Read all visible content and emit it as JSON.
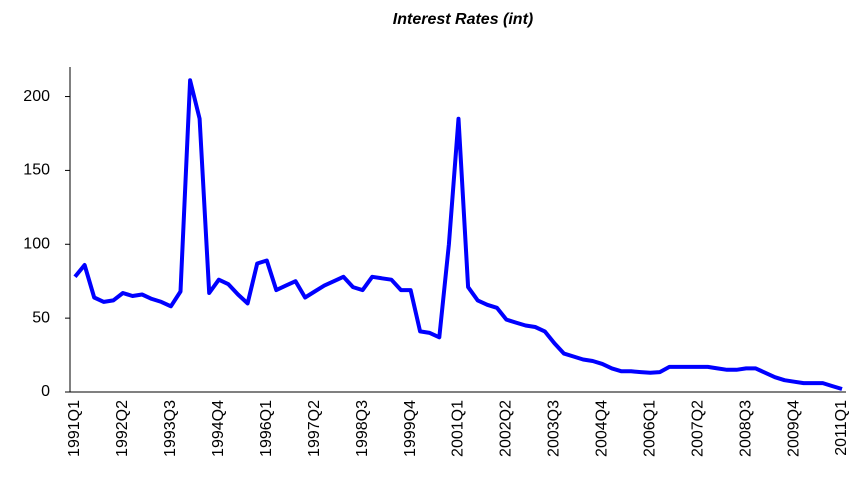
{
  "chart_data": {
    "type": "line",
    "title": "Interest Rates (int)",
    "categories": [
      "1991Q1",
      null,
      null,
      null,
      null,
      "1992Q2",
      null,
      null,
      null,
      null,
      "1993Q3",
      null,
      null,
      null,
      null,
      "1994Q4",
      null,
      null,
      null,
      null,
      "1996Q1",
      null,
      null,
      null,
      null,
      "1997Q2",
      null,
      null,
      null,
      null,
      "1998Q3",
      null,
      null,
      null,
      null,
      "1999Q4",
      null,
      null,
      null,
      null,
      "2001Q1",
      null,
      null,
      null,
      null,
      "2002Q2",
      null,
      null,
      null,
      null,
      "2003Q3",
      null,
      null,
      null,
      null,
      "2004Q4",
      null,
      null,
      null,
      null,
      "2006Q1",
      null,
      null,
      null,
      null,
      "2007Q2",
      null,
      null,
      null,
      null,
      "2008Q3",
      null,
      null,
      null,
      null,
      "2009Q4",
      null,
      null,
      null,
      null,
      "2011Q1"
    ],
    "series": [
      {
        "name": "int",
        "color": "#0000ff",
        "values": [
          78,
          86,
          64,
          61,
          62,
          67,
          65,
          66,
          63,
          61,
          58,
          68,
          211,
          185,
          67,
          76,
          73,
          66,
          60,
          87,
          89,
          69,
          72,
          75,
          64,
          68,
          72,
          75,
          78,
          71,
          69,
          78,
          77,
          76,
          69,
          69,
          41,
          40,
          37,
          100,
          185,
          71,
          62,
          59,
          57,
          49,
          47,
          45,
          44,
          41,
          33,
          26,
          24,
          22,
          21,
          19,
          16,
          14,
          14,
          13.5,
          13,
          13.5,
          17,
          17,
          17,
          17,
          17,
          16,
          15,
          15,
          16,
          16,
          13,
          10,
          8,
          7,
          6,
          6,
          6,
          4,
          2
        ]
      }
    ],
    "ylim": [
      0,
      220
    ],
    "yticks": [
      0,
      50,
      100,
      150,
      200
    ],
    "grid": false
  }
}
